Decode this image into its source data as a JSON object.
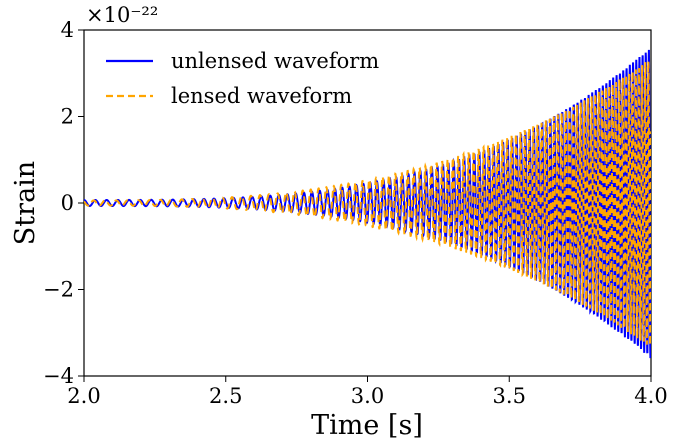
{
  "chart_data": {
    "type": "line",
    "xlabel": "Time [s]",
    "ylabel": "Strain",
    "xlim": [
      2.0,
      4.0
    ],
    "ylim": [
      -4,
      4
    ],
    "y_scale_exponent": "×10⁻²²",
    "xticks": [
      "2.0",
      "2.5",
      "3.0",
      "3.5",
      "4.0"
    ],
    "yticks": [
      "4",
      "2",
      "0",
      "−2",
      "−4"
    ],
    "xtick_values": [
      2.0,
      2.5,
      3.0,
      3.5,
      4.0
    ],
    "ytick_values": [
      4,
      2,
      0,
      -2,
      -4
    ],
    "grid": false,
    "legend": "top-left",
    "series": [
      {
        "name": "unlensed waveform",
        "color": "#0000ff",
        "style": "solid",
        "model": {
          "f_start": 25.0,
          "f_end": 92.0,
          "amp_start": 0.07,
          "amp_end": 3.6,
          "amp_power": 3.2,
          "phase_shift": 0.0
        }
      },
      {
        "name": "lensed waveform",
        "color": "#ffa500",
        "style": "dashed",
        "model": {
          "f_start": 25.0,
          "f_end": 92.0,
          "amp_start": 0.06,
          "amp_end": 3.35,
          "amp_power": 2.8,
          "phase_shift": 0.9
        }
      }
    ]
  }
}
